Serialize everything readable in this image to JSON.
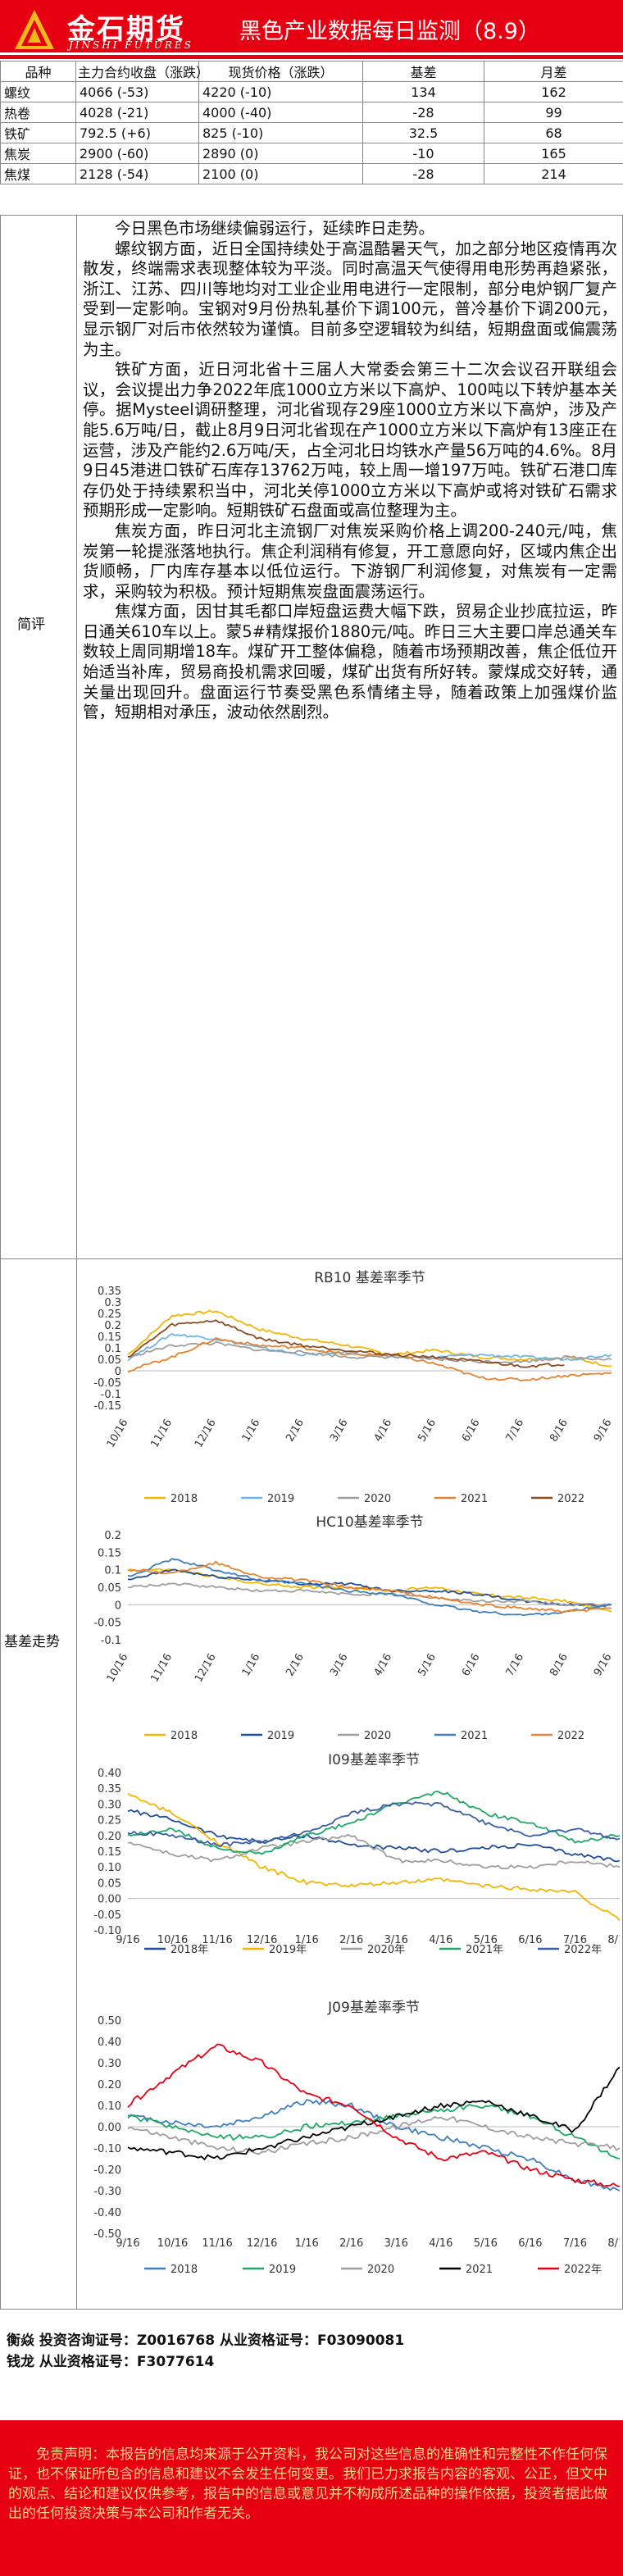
{
  "header": {
    "logo_cn": "金石期货",
    "logo_en": "JINSHI FUTURES",
    "title": "黑色产业数据每日监测（8.9）"
  },
  "price_table": {
    "columns": [
      "品种",
      "主力合约收盘（涨跌）",
      "现货价格（涨跌）",
      "基差",
      "月差"
    ],
    "rows": [
      {
        "name": "螺纹",
        "futures": "4066  (-53)",
        "spot": "4220  (-10)",
        "basis": "134",
        "spread": "162"
      },
      {
        "name": "热卷",
        "futures": "4028  (-21)",
        "spot": "4000  (-40)",
        "basis": "-28",
        "spread": "99"
      },
      {
        "name": "铁矿",
        "futures": "792.5  (+6)",
        "spot": "825  (-10)",
        "basis": "32.5",
        "spread": "68"
      },
      {
        "name": "焦炭",
        "futures": "2900  (-60)",
        "spot": "2890  (0)",
        "basis": "-10",
        "spread": "165"
      },
      {
        "name": "焦煤",
        "futures": "2128  (-54)",
        "spot": "2100  (0)",
        "basis": "-28",
        "spread": "214"
      }
    ]
  },
  "summary": {
    "label": "简评",
    "paragraphs": [
      "今日黑色市场继续偏弱运行，延续昨日走势。",
      "螺纹钢方面，近日全国持续处于高温酷暑天气，加之部分地区疫情再次散发，终端需求表现整体较为平淡。同时高温天气使得用电形势再趋紧张，浙江、江苏、四川等地均对工业企业用电进行一定限制，部分电炉钢厂复产受到一定影响。宝钢对9月份热轧基价下调100元，普冷基价下调200元，显示钢厂对后市依然较为谨慎。目前多空逻辑较为纠结，短期盘面或偏震荡为主。",
      "铁矿方面，近日河北省十三届人大常委会第三十二次会议召开联组会议，会议提出力争2022年底1000立方米以下高炉、100吨以下转炉基本关停。据Mysteel调研整理，河北省现存29座1000立方米以下高炉，涉及产能5.6万吨/日，截止8月9日河北省现在产1000立方米以下高炉有13座正在运营，涉及产能约2.6万吨/天，占全河北日均铁水产量56万吨的4.6%。8月9日45港进口铁矿石库存13762万吨，较上周一增197万吨。铁矿石港口库存仍处于持续累积当中，河北关停1000立方米以下高炉或将对铁矿石需求预期形成一定影响。短期铁矿石盘面或高位整理为主。",
      "焦炭方面，昨日河北主流钢厂对焦炭采购价格上调200-240元/吨，焦炭第一轮提涨落地执行。焦企利润稍有修复，开工意愿向好，区域内焦企出货顺畅，厂内库存基本以低位运行。下游钢厂利润修复，对焦炭有一定需求，采购较为积极。预计短期焦炭盘面震荡运行。",
      "焦煤方面，因甘其毛都口岸短盘运费大幅下跌，贸易企业抄底拉运，昨日通关610车以上。蒙5#精煤报价1880元/吨。昨日三大主要口岸总通关车数较上周同期增18车。煤矿开工整体偏稳，随着市场预期改善，焦企低位开始适当补库，贸易商投机需求回暖，煤矿出货有所好转。蒙煤成交好转，通关量出现回升。盘面运行节奏受黑色系情绪主导，随着政策上加强煤价监管，短期相对承压，波动依然剧烈。"
    ]
  },
  "charts_section": {
    "label": "基差走势"
  },
  "chart_data": [
    {
      "type": "line",
      "title": "RB10 基差率季节",
      "x": [
        "10/16",
        "11/16",
        "12/16",
        "1/16",
        "2/16",
        "3/16",
        "4/16",
        "5/16",
        "6/16",
        "7/16",
        "8/16",
        "9/16"
      ],
      "ylim": [
        -0.15,
        0.35
      ],
      "yticks": [
        "0.35",
        "0.3",
        "0.25",
        "0.2",
        "0.15",
        "0.1",
        "0.05",
        "0",
        "-0.05",
        "-0.1",
        "-0.15"
      ],
      "legend_position": "bottom",
      "series": [
        {
          "name": "2018",
          "color": "#f4b400",
          "values": [
            0.07,
            0.24,
            0.26,
            0.18,
            0.14,
            0.11,
            0.07,
            0.09,
            0.06,
            0.05,
            0.06,
            0.02
          ]
        },
        {
          "name": "2019",
          "color": "#70b5e8",
          "values": [
            0.05,
            0.16,
            0.14,
            0.1,
            0.07,
            0.08,
            0.06,
            0.06,
            0.07,
            0.06,
            0.05,
            0.07
          ]
        },
        {
          "name": "2020",
          "color": "#9e9e9e",
          "values": [
            0.06,
            0.11,
            0.12,
            0.09,
            0.08,
            0.06,
            0.06,
            0.05,
            0.04,
            0.04,
            0.06,
            0.05
          ]
        },
        {
          "name": "2021",
          "color": "#e8822c",
          "values": [
            0.0,
            0.06,
            0.14,
            0.11,
            0.1,
            0.07,
            0.07,
            0.03,
            -0.03,
            -0.04,
            -0.02,
            -0.01
          ]
        },
        {
          "name": "2022",
          "color": "#8b4a1f",
          "values": [
            0.06,
            0.2,
            0.22,
            0.14,
            0.11,
            0.09,
            0.07,
            0.06,
            0.04,
            0.02,
            0.03,
            null
          ]
        }
      ]
    },
    {
      "type": "line",
      "title": "HC10基差率季节",
      "x": [
        "10/16",
        "11/16",
        "12/16",
        "1/16",
        "2/16",
        "3/16",
        "4/16",
        "5/16",
        "6/16",
        "7/16",
        "8/16",
        "9/16"
      ],
      "ylim": [
        -0.1,
        0.2
      ],
      "yticks": [
        "0.2",
        "0.15",
        "0.1",
        "0.05",
        "0",
        "-0.05",
        "-0.1"
      ],
      "legend_position": "bottom",
      "series": [
        {
          "name": "2018",
          "color": "#f4b400",
          "values": [
            0.1,
            0.1,
            0.08,
            0.06,
            0.05,
            0.05,
            0.04,
            0.05,
            0.03,
            0.02,
            0.01,
            -0.02
          ]
        },
        {
          "name": "2019",
          "color": "#1f4e9c",
          "values": [
            0.07,
            0.1,
            0.08,
            0.07,
            0.06,
            0.06,
            0.04,
            0.04,
            0.03,
            0.01,
            0.0,
            0.0
          ]
        },
        {
          "name": "2020",
          "color": "#9e9e9e",
          "values": [
            0.05,
            0.06,
            0.05,
            0.04,
            0.04,
            0.03,
            0.03,
            0.02,
            0.01,
            0.01,
            0.0,
            0.0
          ]
        },
        {
          "name": "2021",
          "color": "#3f7fbf",
          "values": [
            0.08,
            0.13,
            0.1,
            0.07,
            0.06,
            0.04,
            0.03,
            0.0,
            -0.02,
            -0.03,
            -0.02,
            0.0
          ]
        },
        {
          "name": "2022",
          "color": "#e8822c",
          "values": [
            0.1,
            0.09,
            0.12,
            0.08,
            0.07,
            0.05,
            0.04,
            0.02,
            0.0,
            -0.01,
            -0.02,
            -0.01
          ]
        }
      ]
    },
    {
      "type": "line",
      "title": "I09基差率季节",
      "x": [
        "9/16",
        "10/16",
        "11/16",
        "12/16",
        "1/16",
        "2/16",
        "3/16",
        "4/16",
        "5/16",
        "6/16",
        "7/16",
        "8/16"
      ],
      "ylim": [
        -0.1,
        0.4
      ],
      "yticks": [
        "0.40",
        "0.35",
        "0.30",
        "0.25",
        "0.20",
        "0.15",
        "0.10",
        "0.05",
        "0.00",
        "-0.05",
        "-0.10"
      ],
      "legend_position": "bottom",
      "series": [
        {
          "name": "2018年",
          "color": "#1f4e9c",
          "values": [
            0.28,
            0.25,
            0.2,
            0.18,
            0.2,
            0.17,
            0.16,
            0.15,
            0.16,
            0.17,
            0.14,
            0.12
          ]
        },
        {
          "name": "2019年",
          "color": "#f4b400",
          "values": [
            0.33,
            0.27,
            0.18,
            0.1,
            0.05,
            0.04,
            0.05,
            0.06,
            0.04,
            0.03,
            0.02,
            -0.07
          ]
        },
        {
          "name": "2020年",
          "color": "#9e9e9e",
          "values": [
            0.18,
            0.14,
            0.12,
            0.16,
            0.18,
            0.2,
            0.12,
            0.12,
            0.1,
            0.1,
            0.12,
            0.1
          ]
        },
        {
          "name": "2021年",
          "color": "#1ea866",
          "values": [
            0.2,
            0.22,
            0.16,
            0.14,
            0.2,
            0.24,
            0.3,
            0.34,
            0.27,
            0.24,
            0.18,
            0.2
          ]
        },
        {
          "name": "2022年",
          "color": "#3a5fa8",
          "values": [
            0.21,
            0.2,
            0.17,
            0.18,
            0.21,
            0.27,
            0.3,
            0.3,
            0.24,
            0.2,
            0.22,
            0.19
          ]
        }
      ]
    },
    {
      "type": "line",
      "title": "J09基差率季节",
      "x": [
        "9/16",
        "10/16",
        "11/16",
        "12/16",
        "1/16",
        "2/16",
        "3/16",
        "4/16",
        "5/16",
        "6/16",
        "7/16",
        "8/16"
      ],
      "ylim": [
        -0.5,
        0.5
      ],
      "yticks": [
        "0.50",
        "0.40",
        "0.30",
        "0.20",
        "0.10",
        "0.00",
        "-0.10",
        "-0.20",
        "-0.30",
        "-0.40",
        "-0.50"
      ],
      "legend_position": "bottom",
      "series": [
        {
          "name": "2018",
          "color": "#3f7fbf",
          "values": [
            0.05,
            0.02,
            0.0,
            0.05,
            0.12,
            0.1,
            0.0,
            -0.05,
            -0.1,
            -0.15,
            -0.25,
            -0.3
          ]
        },
        {
          "name": "2019",
          "color": "#1ea866",
          "values": [
            0.05,
            0.0,
            -0.05,
            -0.05,
            0.0,
            0.02,
            0.05,
            0.08,
            0.1,
            0.05,
            -0.05,
            -0.15
          ]
        },
        {
          "name": "2020",
          "color": "#9e9e9e",
          "values": [
            0.0,
            -0.05,
            -0.1,
            -0.12,
            -0.08,
            -0.05,
            0.0,
            0.05,
            0.0,
            -0.05,
            -0.08,
            -0.1
          ]
        },
        {
          "name": "2021",
          "color": "#000000",
          "values": [
            -0.1,
            -0.12,
            -0.15,
            -0.1,
            -0.05,
            0.0,
            0.05,
            0.1,
            0.12,
            0.05,
            -0.02,
            0.28
          ]
        },
        {
          "name": "2022年",
          "color": "#e60012",
          "values": [
            0.1,
            0.25,
            0.38,
            0.3,
            0.15,
            0.1,
            -0.05,
            -0.15,
            -0.12,
            -0.2,
            -0.25,
            -0.28
          ]
        }
      ]
    }
  ],
  "contacts": {
    "line1": "衡焱 投资咨询证号：Z0016768 从业资格证号：F03090081",
    "line2": "钱龙 从业资格证号：F3077614"
  },
  "disclaimer": {
    "text": "免责声明：本报告的信息均来源于公开资料，我公司对这些信息的准确性和完整性不作任何保证，也不保证所包含的信息和建议不会发生任何变更。我们已力求报告内容的客观、公正，但文中的观点、结论和建议仅供参考，报告中的信息或意见并不构成所述品种的操作依据，投资者据此做出的任何投资决策与本公司和作者无关。"
  }
}
